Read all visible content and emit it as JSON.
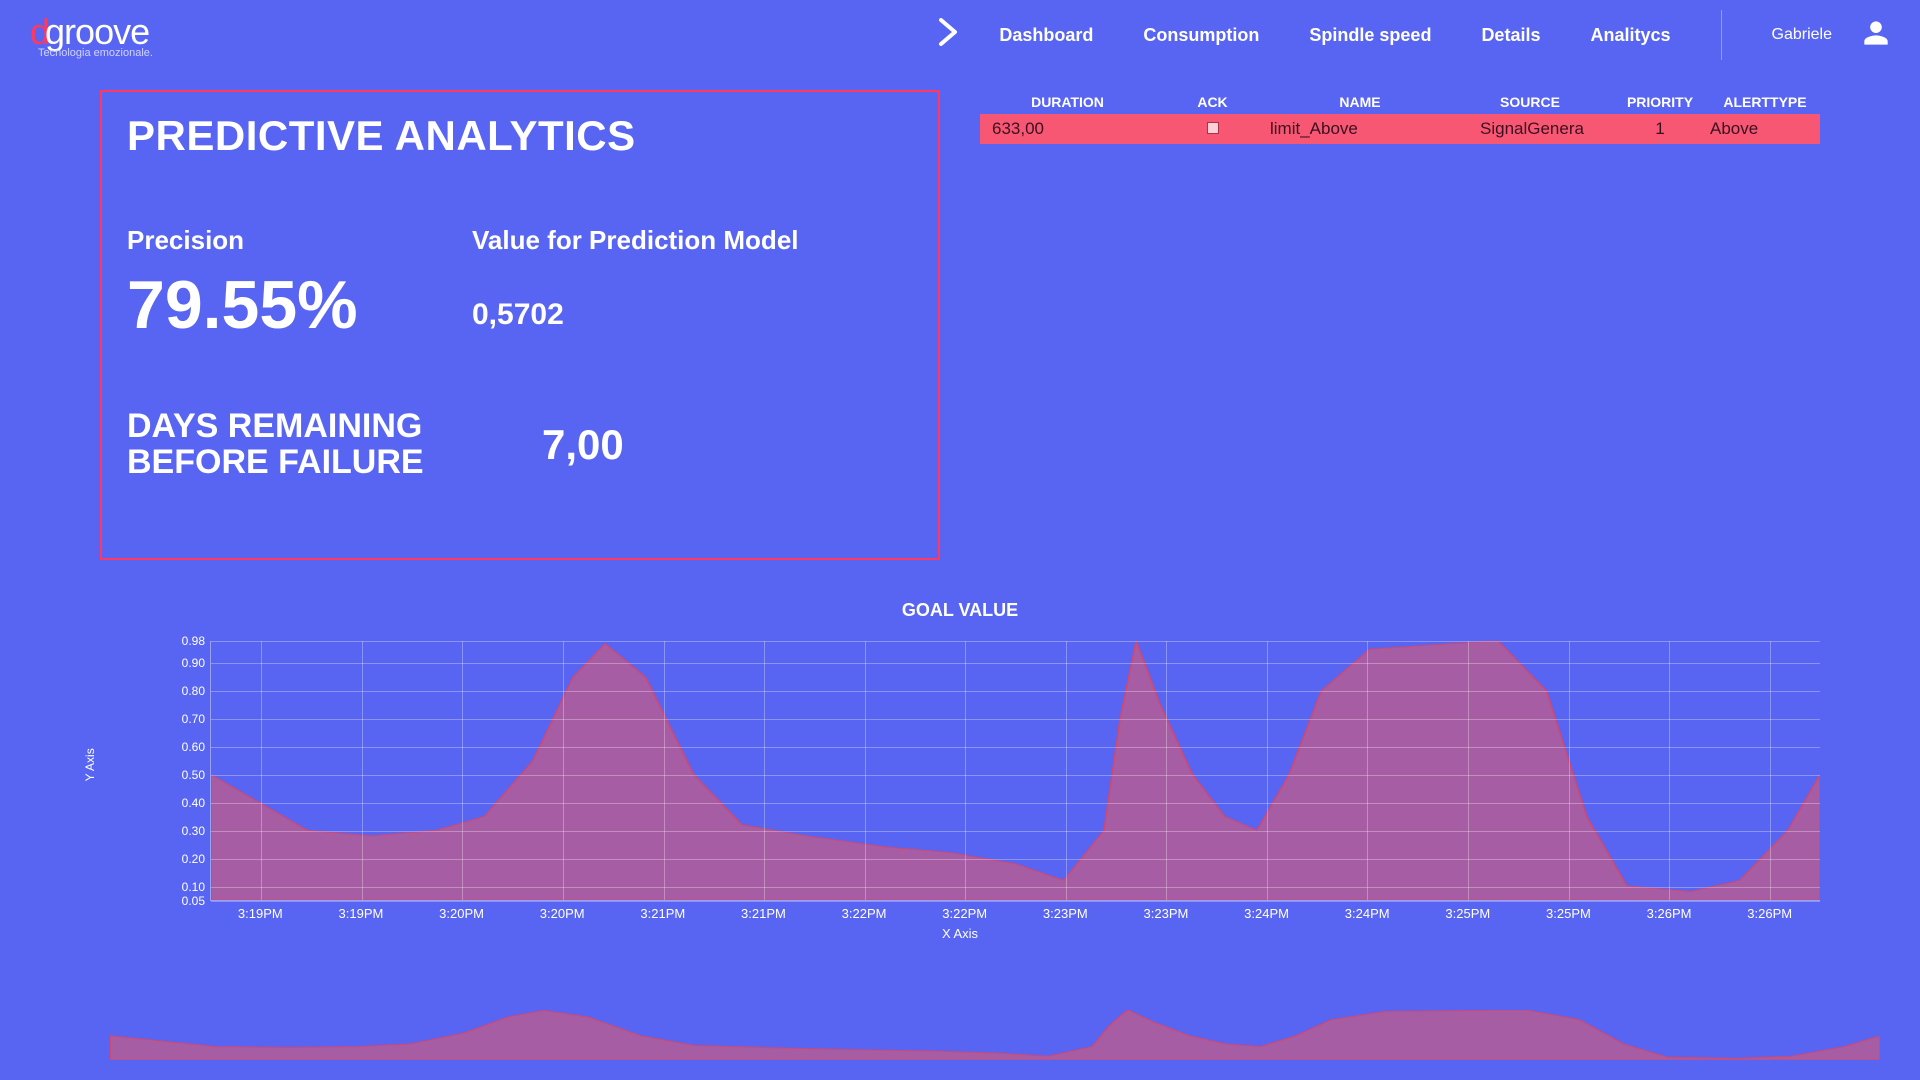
{
  "brand": {
    "d": "d",
    "rest": "groove",
    "tagline": "Tecnologia emozionale."
  },
  "nav": {
    "items": [
      "Dashboard",
      "Consumption",
      "Spindle speed",
      "Details",
      "Analitycs"
    ]
  },
  "user": {
    "name": "Gabriele"
  },
  "panel": {
    "title": "PREDICTIVE ANALYTICS",
    "precision_label": "Precision",
    "precision_value": "79.55%",
    "model_label": "Value for Prediction Model",
    "model_value": "0,5702",
    "days_label_1": "DAYS REMAINING",
    "days_label_2": "BEFORE FAILURE",
    "days_value": "7,00"
  },
  "table": {
    "headers": {
      "duration": "DURATION",
      "ack": "ACK",
      "name": "NAME",
      "source": "SOURCE",
      "priority": "PRIORITY",
      "alerttype": "ALERTTYPE"
    },
    "row": {
      "duration": "633,00",
      "name": "limit_Above",
      "source": "SignalGenera",
      "priority": "1",
      "alerttype": "Above"
    }
  },
  "chart": {
    "title": "GOAL VALUE",
    "type": "area",
    "y_label": "Y Axis",
    "x_label": "X Axis",
    "fill_color": "#c25b8a",
    "fill_opacity": 0.75,
    "stroke_color": "#d04870",
    "grid_color": "rgba(255,255,255,0.3)",
    "background_color": "#5865f2",
    "ylim": [
      0.05,
      0.98
    ],
    "y_ticks": [
      "0.98",
      "0.90",
      "0.80",
      "0.70",
      "0.60",
      "0.50",
      "0.40",
      "0.30",
      "0.20",
      "0.10",
      "0.05"
    ],
    "x_ticks": [
      "3:19PM",
      "3:19PM",
      "3:20PM",
      "3:20PM",
      "3:21PM",
      "3:21PM",
      "3:22PM",
      "3:22PM",
      "3:23PM",
      "3:23PM",
      "3:24PM",
      "3:24PM",
      "3:25PM",
      "3:25PM",
      "3:26PM",
      "3:26PM"
    ],
    "series": [
      {
        "x": 0.0,
        "y": 0.5
      },
      {
        "x": 0.03,
        "y": 0.4
      },
      {
        "x": 0.06,
        "y": 0.3
      },
      {
        "x": 0.1,
        "y": 0.28
      },
      {
        "x": 0.14,
        "y": 0.3
      },
      {
        "x": 0.17,
        "y": 0.35
      },
      {
        "x": 0.2,
        "y": 0.55
      },
      {
        "x": 0.225,
        "y": 0.85
      },
      {
        "x": 0.245,
        "y": 0.97
      },
      {
        "x": 0.27,
        "y": 0.85
      },
      {
        "x": 0.3,
        "y": 0.5
      },
      {
        "x": 0.33,
        "y": 0.32
      },
      {
        "x": 0.37,
        "y": 0.28
      },
      {
        "x": 0.42,
        "y": 0.24
      },
      {
        "x": 0.46,
        "y": 0.22
      },
      {
        "x": 0.5,
        "y": 0.18
      },
      {
        "x": 0.53,
        "y": 0.12
      },
      {
        "x": 0.555,
        "y": 0.3
      },
      {
        "x": 0.565,
        "y": 0.7
      },
      {
        "x": 0.575,
        "y": 0.98
      },
      {
        "x": 0.59,
        "y": 0.75
      },
      {
        "x": 0.61,
        "y": 0.5
      },
      {
        "x": 0.63,
        "y": 0.35
      },
      {
        "x": 0.65,
        "y": 0.3
      },
      {
        "x": 0.67,
        "y": 0.5
      },
      {
        "x": 0.69,
        "y": 0.8
      },
      {
        "x": 0.72,
        "y": 0.95
      },
      {
        "x": 0.77,
        "y": 0.97
      },
      {
        "x": 0.8,
        "y": 0.98
      },
      {
        "x": 0.83,
        "y": 0.8
      },
      {
        "x": 0.855,
        "y": 0.35
      },
      {
        "x": 0.88,
        "y": 0.1
      },
      {
        "x": 0.92,
        "y": 0.08
      },
      {
        "x": 0.95,
        "y": 0.12
      },
      {
        "x": 0.98,
        "y": 0.3
      },
      {
        "x": 1.0,
        "y": 0.5
      }
    ]
  }
}
